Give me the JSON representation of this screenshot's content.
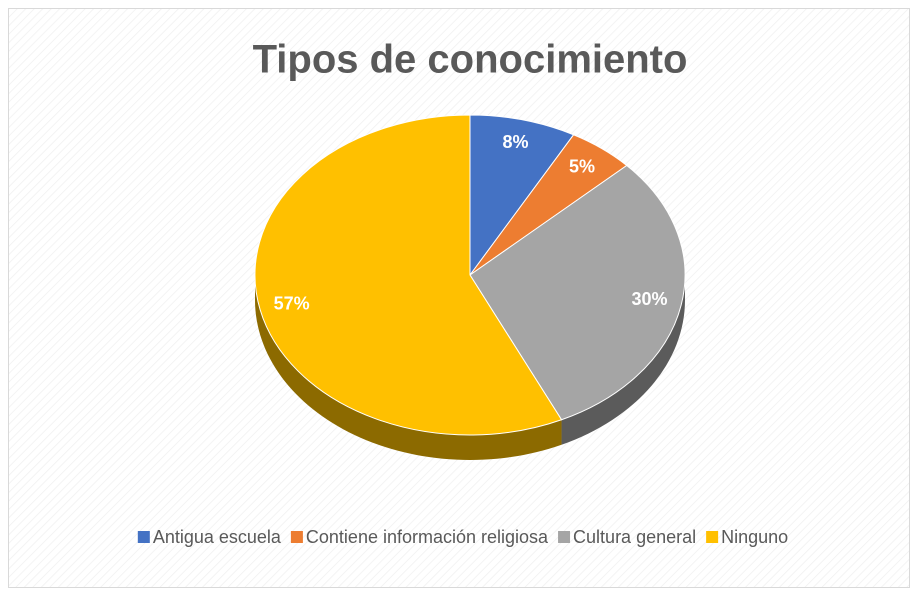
{
  "chart_data": {
    "type": "pie",
    "title": "Tipos de conocimiento",
    "categories": [
      "Antigua escuela",
      "Contiene información religiosa",
      "Cultura general",
      "Ninguno"
    ],
    "values": [
      8,
      5,
      30,
      57
    ],
    "value_labels": [
      "8%",
      "5%",
      "30%",
      "57%"
    ],
    "colors": [
      "#4472c4",
      "#ed7d31",
      "#a5a5a5",
      "#ffc000"
    ],
    "legend": "bottom",
    "three_d": true
  }
}
